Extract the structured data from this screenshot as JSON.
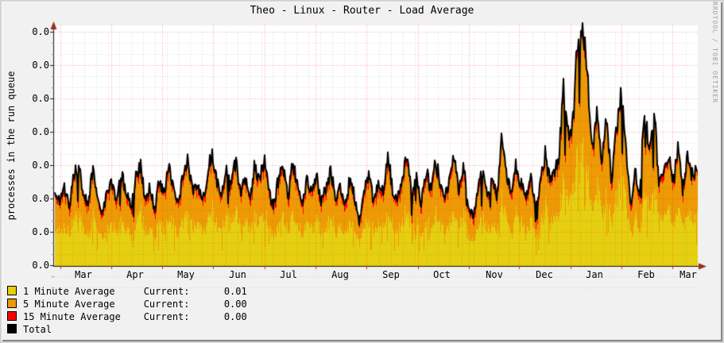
{
  "chart_data": {
    "type": "area",
    "title": "Theo - Linux - Router - Load Average",
    "ylabel": "processes in the run queue",
    "xlabel": "",
    "x_tick_labels": [
      "Mar",
      "Apr",
      "May",
      "Jun",
      "Jul",
      "Aug",
      "Sep",
      "Oct",
      "Nov",
      "Dec",
      "Jan",
      "Feb",
      "Mar"
    ],
    "y_tick_labels": [
      "0.0",
      "0.0",
      "0.0",
      "0.0",
      "0.0",
      "0.0",
      "0.0",
      "0.0"
    ],
    "ylim": [
      0,
      1.02
    ],
    "grid": true,
    "legend_position": "bottom-left",
    "series": [
      {
        "name": "1 Minute Average",
        "color": "#E5CF10",
        "current": "0.01",
        "role": "stacked-area"
      },
      {
        "name": "5 Minute Average",
        "color": "#EE9A06",
        "current": "0.00",
        "role": "stacked-area"
      },
      {
        "name": "15 Minute Average",
        "color": "#FF0000",
        "current": "0.00",
        "role": "stacked-area"
      },
      {
        "name": "Total",
        "color": "#000000",
        "role": "line"
      }
    ],
    "stack_split_rel": {
      "one_min": 0.5,
      "five_min": 0.43,
      "fifteen_min": 0.07
    },
    "total_envelope_rel": [
      0.3,
      0.27,
      0.33,
      0.25,
      0.38,
      0.41,
      0.3,
      0.26,
      0.4,
      0.28,
      0.22,
      0.3,
      0.34,
      0.27,
      0.38,
      0.3,
      0.25,
      0.36,
      0.42,
      0.28,
      0.33,
      0.23,
      0.36,
      0.3,
      0.42,
      0.33,
      0.26,
      0.38,
      0.44,
      0.3,
      0.35,
      0.27,
      0.33,
      0.5,
      0.36,
      0.28,
      0.4,
      0.32,
      0.44,
      0.3,
      0.37,
      0.26,
      0.42,
      0.34,
      0.45,
      0.3,
      0.25,
      0.36,
      0.42,
      0.28,
      0.43,
      0.33,
      0.26,
      0.36,
      0.3,
      0.38,
      0.26,
      0.33,
      0.4,
      0.28,
      0.34,
      0.24,
      0.36,
      0.29,
      0.18,
      0.32,
      0.38,
      0.27,
      0.35,
      0.3,
      0.46,
      0.32,
      0.27,
      0.38,
      0.44,
      0.3,
      0.36,
      0.26,
      0.4,
      0.32,
      0.44,
      0.35,
      0.28,
      0.38,
      0.44,
      0.31,
      0.42,
      0.25,
      0.2,
      0.33,
      0.4,
      0.3,
      0.36,
      0.28,
      0.58,
      0.36,
      0.3,
      0.42,
      0.34,
      0.28,
      0.38,
      0.25,
      0.33,
      0.47,
      0.36,
      0.4,
      0.46,
      0.74,
      0.52,
      0.63,
      0.94,
      1.0,
      0.83,
      0.45,
      0.66,
      0.44,
      0.64,
      0.36,
      0.56,
      0.7,
      0.52,
      0.25,
      0.38,
      0.31,
      0.68,
      0.45,
      0.64,
      0.34,
      0.42,
      0.48,
      0.36,
      0.49,
      0.32,
      0.44,
      0.38,
      0.41
    ]
  },
  "legend": {
    "current_label": "Current:",
    "rows": [
      {
        "label": "1 Minute Average",
        "value": "0.01"
      },
      {
        "label": "5 Minute Average",
        "value": "0.00"
      },
      {
        "label": "15 Minute Average",
        "value": "0.00"
      },
      {
        "label": "Total",
        "value": null
      }
    ]
  },
  "watermark": {
    "text": "RRDTOOL / TOBI OETIKER"
  },
  "colors": {
    "background": "#F1F1F1",
    "plot_background": "#FFFFFF",
    "major_grid": "#FF0000",
    "minor_grid": "#707070",
    "axis": "#1C1C1C",
    "arrow": "#96301D",
    "text": "#000000",
    "watermark": "#9E9E9E"
  }
}
